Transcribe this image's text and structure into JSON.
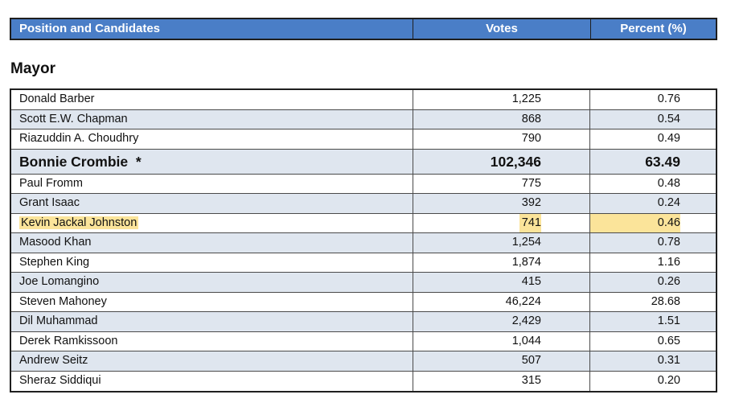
{
  "header": {
    "col_name": "Position and Candidates",
    "col_votes": "Votes",
    "col_percent": "Percent (%)"
  },
  "section": {
    "title": "Mayor"
  },
  "candidates": [
    {
      "name": "Donald Barber",
      "votes": "1,225",
      "percent": "0.76"
    },
    {
      "name": "Scott E.W. Chapman",
      "votes": "868",
      "percent": "0.54"
    },
    {
      "name": "Riazuddin A. Choudhry",
      "votes": "790",
      "percent": "0.49"
    },
    {
      "name": "Bonnie Crombie  *",
      "votes": "102,346",
      "percent": "63.49"
    },
    {
      "name": "Paul Fromm",
      "votes": "775",
      "percent": "0.48"
    },
    {
      "name": "Grant Isaac",
      "votes": "392",
      "percent": "0.24"
    },
    {
      "name": "Kevin Jackal Johnston",
      "votes": "741",
      "percent": "0.46"
    },
    {
      "name": "Masood Khan",
      "votes": "1,254",
      "percent": "0.78"
    },
    {
      "name": "Stephen King",
      "votes": "1,874",
      "percent": "1.16"
    },
    {
      "name": "Joe Lomangino",
      "votes": "415",
      "percent": "0.26"
    },
    {
      "name": "Steven Mahoney",
      "votes": "46,224",
      "percent": "28.68"
    },
    {
      "name": "Dil Muhammad",
      "votes": "2,429",
      "percent": "1.51"
    },
    {
      "name": "Derek Ramkissoon",
      "votes": "1,044",
      "percent": "0.65"
    },
    {
      "name": "Andrew Seitz",
      "votes": "507",
      "percent": "0.31"
    },
    {
      "name": "Sheraz Siddiqui",
      "votes": "315",
      "percent": "0.20"
    }
  ],
  "colors": {
    "header_bg": "#4a7ec7",
    "row_shade": "#dfe6ef",
    "highlight": "#fbe49a"
  }
}
